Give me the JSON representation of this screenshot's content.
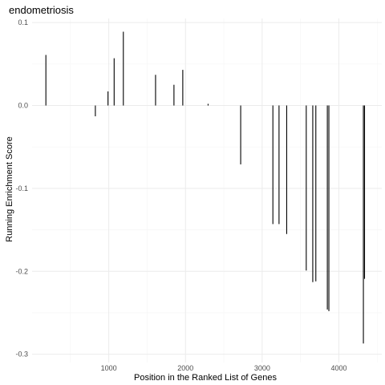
{
  "chart_data": {
    "type": "bar",
    "title": "endometriosis",
    "xlabel": "Position in the Ranked List of Genes",
    "ylabel": "Running Enrichment Score",
    "xlim": [
      0,
      4560
    ],
    "ylim": [
      -0.31,
      0.105
    ],
    "x_ticks": [
      1000,
      2000,
      3000,
      4000
    ],
    "y_ticks": [
      0.1,
      0.0,
      -0.1,
      -0.2,
      -0.3
    ],
    "x_tick_labels": [
      "1000",
      "2000",
      "3000",
      "4000"
    ],
    "y_tick_labels": [
      "0.1",
      "0.0",
      "-0.1",
      "-0.2",
      "-0.3"
    ],
    "grid": true,
    "legend": "none",
    "points": [
      {
        "x": 180,
        "y": 0.061
      },
      {
        "x": 825,
        "y": -0.013
      },
      {
        "x": 990,
        "y": 0.017
      },
      {
        "x": 1070,
        "y": 0.057
      },
      {
        "x": 1190,
        "y": 0.089
      },
      {
        "x": 1610,
        "y": 0.037
      },
      {
        "x": 1850,
        "y": 0.025
      },
      {
        "x": 1965,
        "y": 0.043
      },
      {
        "x": 2295,
        "y": 0.002
      },
      {
        "x": 2720,
        "y": -0.071
      },
      {
        "x": 3140,
        "y": -0.143
      },
      {
        "x": 3220,
        "y": -0.143
      },
      {
        "x": 3320,
        "y": -0.155
      },
      {
        "x": 3575,
        "y": -0.199
      },
      {
        "x": 3660,
        "y": -0.213
      },
      {
        "x": 3700,
        "y": -0.212
      },
      {
        "x": 3850,
        "y": -0.246
      },
      {
        "x": 3870,
        "y": -0.248
      },
      {
        "x": 4320,
        "y": -0.287
      },
      {
        "x": 4335,
        "y": -0.209
      }
    ]
  }
}
